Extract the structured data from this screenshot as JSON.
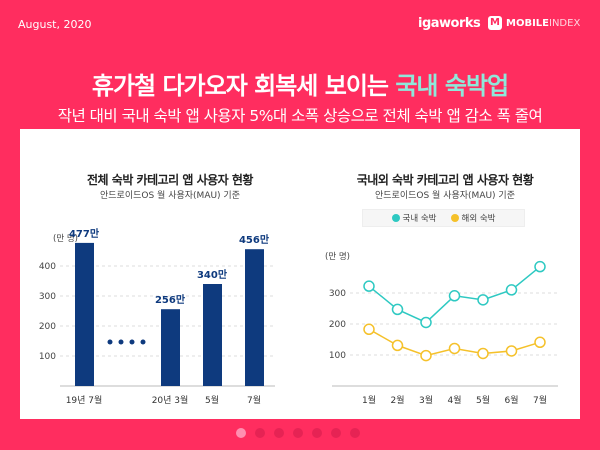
{
  "header": {
    "date": "August, 2020",
    "logo_igaworks": "igaworks",
    "logo_mobileindex": [
      "MOBILE",
      "INDEX"
    ],
    "title_main": "휴가철 다가오자 회복세 보이는 ",
    "title_highlight": "국내 숙박업",
    "subtitle": "작년 대비 국내 숙박 앱 사용자 5%대 소폭 상승으로 전체 숙박 앱 감소 폭 줄여"
  },
  "colors": {
    "background": "#ff2d5f",
    "bar": "#0e3a7e",
    "domestic": "#2ec9c2",
    "overseas": "#f5c12a",
    "highlight": "#8fe8da"
  },
  "chart_data": [
    {
      "type": "bar",
      "title": "전체 숙박 카테고리 앱 사용자 현황",
      "subtitle": "안드로이드OS 월 사용자(MAU) 기준",
      "ylabel": "(만 명)",
      "ylim": [
        0,
        500
      ],
      "yticks": [
        100,
        200,
        300,
        400
      ],
      "grid": true,
      "categories": [
        "19년 7월",
        "20년 3월",
        "5월",
        "7월"
      ],
      "values": [
        477,
        256,
        340,
        456
      ],
      "data_labels": [
        "477만",
        "256만",
        "340만",
        "456만"
      ],
      "gap_marker": "••••"
    },
    {
      "type": "line",
      "title": "국내외 숙박 카테고리 앱 사용자 현황",
      "subtitle": "안드로이드OS 월 사용자(MAU) 기준",
      "ylabel": "(만 명)",
      "ylim": [
        0,
        400
      ],
      "yticks": [
        100,
        200,
        300
      ],
      "grid": true,
      "legend": "top",
      "categories": [
        "1월",
        "2월",
        "3월",
        "4월",
        "5월",
        "6월",
        "7월"
      ],
      "series": [
        {
          "name": "국내 숙박",
          "values": [
            322,
            247,
            205,
            291,
            278,
            310,
            385
          ]
        },
        {
          "name": "해외 숙박",
          "values": [
            183,
            131,
            98,
            121,
            105,
            113,
            141
          ]
        }
      ]
    }
  ],
  "pagination": {
    "total": 7,
    "current": 1
  }
}
